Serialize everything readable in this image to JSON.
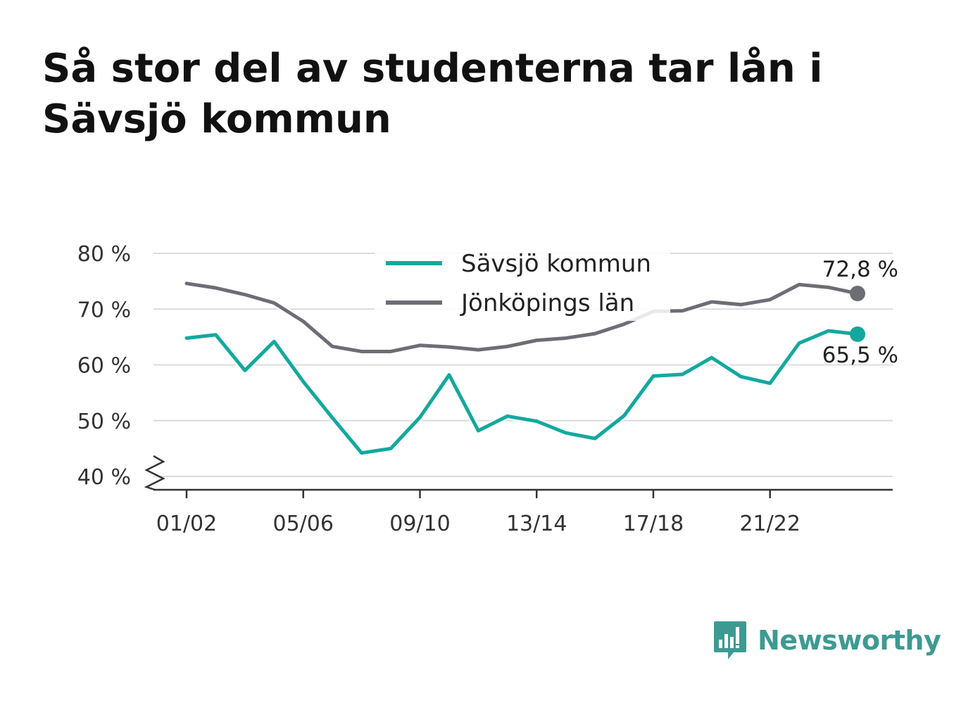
{
  "title": "Så stor del av studenterna tar lån i Sävsjö kommun",
  "brand": {
    "name": "Newsworthy",
    "color": "#3d9a92",
    "icon": "bar-chart-speech-bubble-icon"
  },
  "chart_data": {
    "type": "line",
    "x": [
      "01/02",
      "02/03",
      "03/04",
      "04/05",
      "05/06",
      "06/07",
      "07/08",
      "08/09",
      "09/10",
      "10/11",
      "11/12",
      "12/13",
      "13/14",
      "14/15",
      "15/16",
      "16/17",
      "17/18",
      "18/19",
      "19/20",
      "20/21",
      "21/22",
      "22/23",
      "23/24",
      "24/25"
    ],
    "x_tick_labels": [
      "01/02",
      "05/06",
      "09/10",
      "13/14",
      "17/18",
      "21/22"
    ],
    "y_tick_labels": [
      "40 %",
      "50 %",
      "60 %",
      "70 %",
      "80 %"
    ],
    "y_ticks": [
      40,
      50,
      60,
      70,
      80
    ],
    "ylim": [
      37.5,
      80
    ],
    "y_axis_break": true,
    "grid": true,
    "legend_position": "top-center",
    "series": [
      {
        "name": "Sävsjö kommun",
        "color": "#13a89e",
        "values": [
          64.8,
          65.4,
          59.0,
          64.2,
          57.0,
          50.5,
          44.2,
          45.0,
          50.6,
          58.2,
          48.2,
          50.8,
          49.9,
          47.8,
          46.8,
          50.9,
          58.0,
          58.3,
          61.3,
          57.9,
          56.7,
          63.9,
          66.1,
          65.5
        ],
        "end_label": "65,5 %"
      },
      {
        "name": "Jönköpings län",
        "color": "#6d6d75",
        "values": [
          74.6,
          73.8,
          72.6,
          71.1,
          67.8,
          63.3,
          62.4,
          62.4,
          63.5,
          63.2,
          62.7,
          63.3,
          64.4,
          64.8,
          65.6,
          67.3,
          69.6,
          69.7,
          71.3,
          70.8,
          71.7,
          74.4,
          73.9,
          72.8
        ],
        "end_label": "72,8 %"
      }
    ]
  }
}
